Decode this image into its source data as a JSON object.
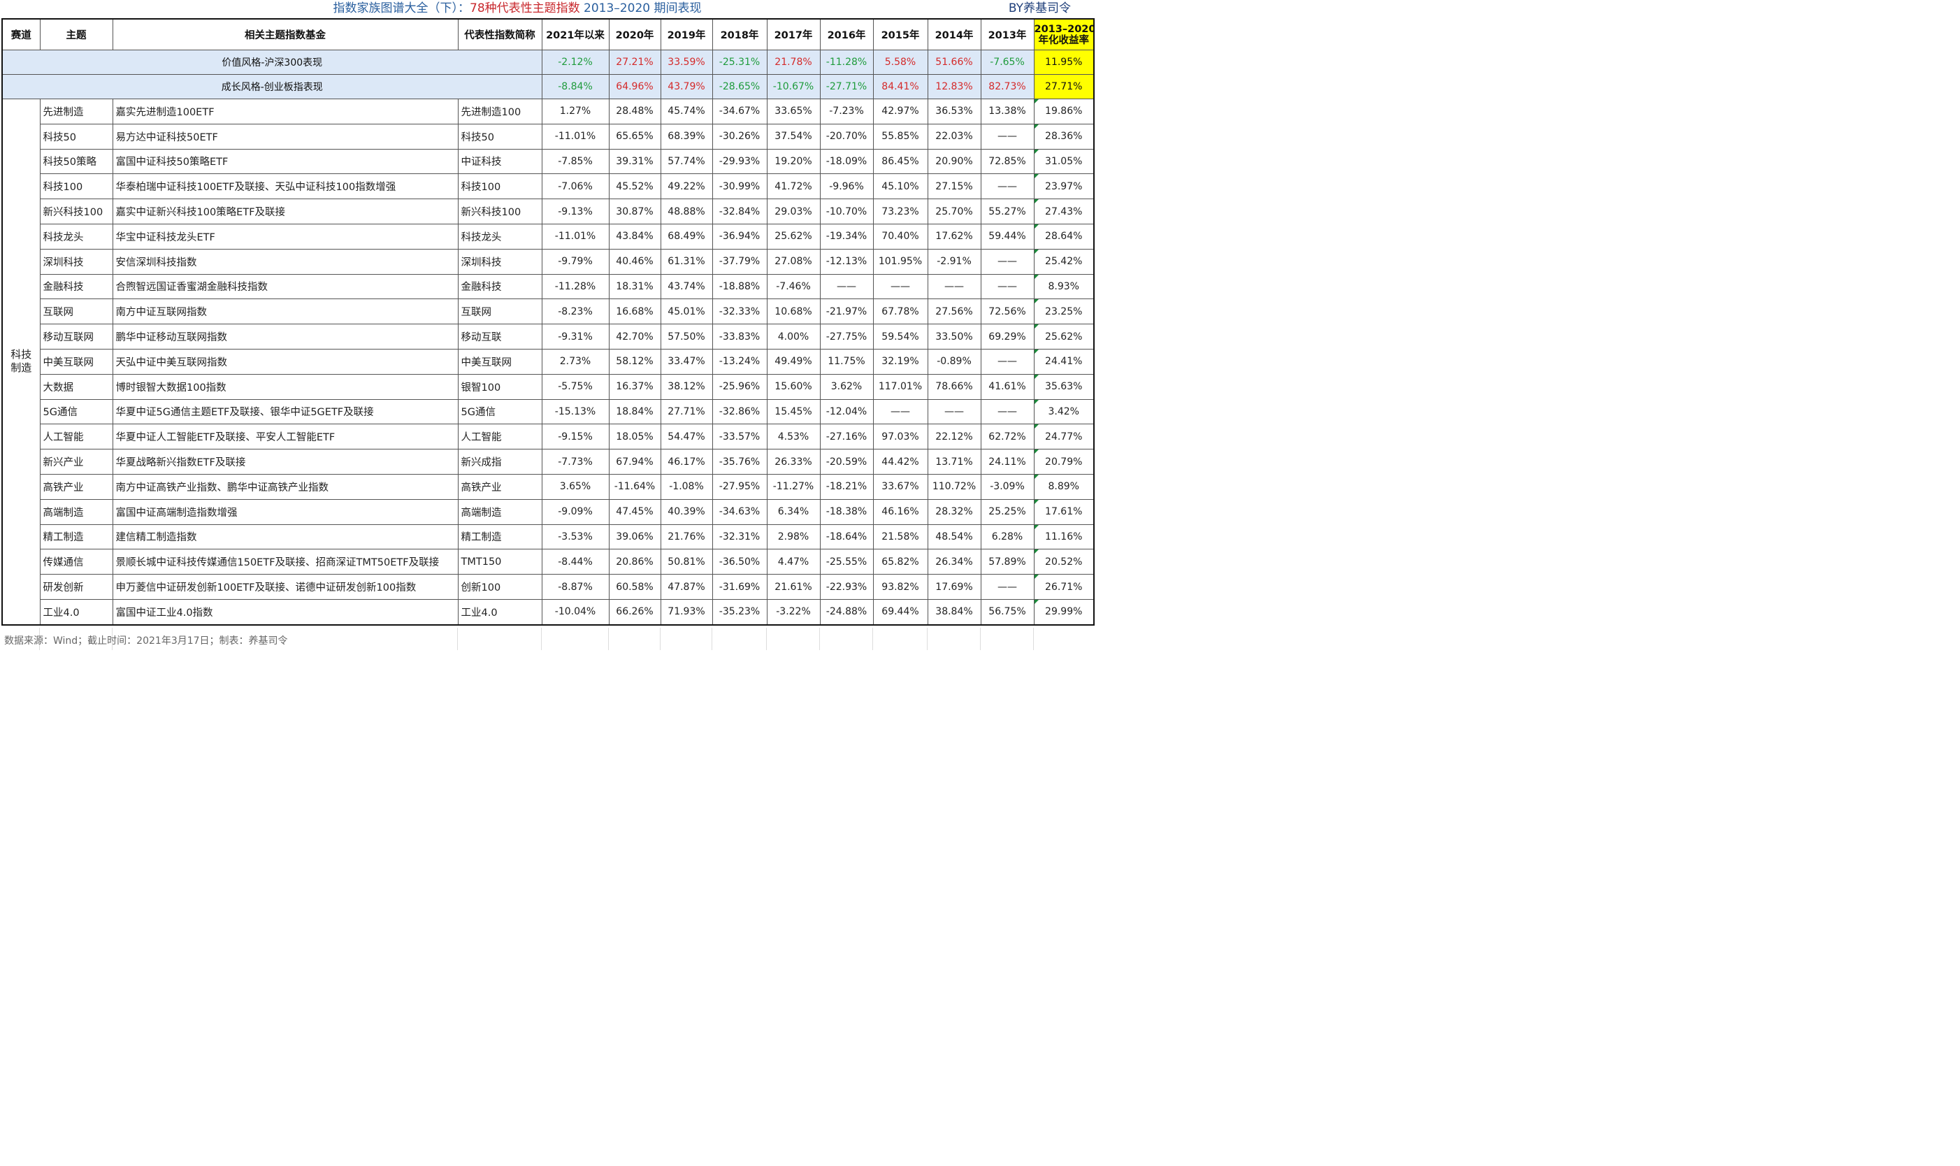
{
  "title": {
    "part1": "指数家族图谱大全（下）：",
    "part2": "78种",
    "part3": "代表性主题指数",
    "part4": " 2013–2020 期间表现",
    "byline": "BY养基司令"
  },
  "headers": [
    "赛道",
    "主题",
    "相关主题指数基金",
    "代表性指数简称",
    "2021年以来",
    "2020年",
    "2019年",
    "2018年",
    "2017年",
    "2016年",
    "2015年",
    "2014年",
    "2013年"
  ],
  "header_last": {
    "line1": "2013–2020",
    "line2": "年化收益率"
  },
  "summary": [
    {
      "label": "价值风格-沪深300表现",
      "values": [
        "-2.12%",
        "27.21%",
        "33.59%",
        "-25.31%",
        "21.78%",
        "-11.28%",
        "5.58%",
        "51.66%",
        "-7.65%",
        "11.95%"
      ]
    },
    {
      "label": "成长风格-创业板指表现",
      "values": [
        "-8.84%",
        "64.96%",
        "43.79%",
        "-28.65%",
        "-10.67%",
        "-27.71%",
        "84.41%",
        "12.83%",
        "82.73%",
        "27.71%"
      ]
    }
  ],
  "track_label": "科技\n制造",
  "rows": [
    {
      "theme": "先进制造",
      "fund": "嘉实先进制造100ETF",
      "index": "先进制造100",
      "values": [
        "1.27%",
        "28.48%",
        "45.74%",
        "-34.67%",
        "33.65%",
        "-7.23%",
        "42.97%",
        "36.53%",
        "13.38%",
        "19.86%"
      ]
    },
    {
      "theme": "科技50",
      "fund": "易方达中证科技50ETF",
      "index": "科技50",
      "values": [
        "-11.01%",
        "65.65%",
        "68.39%",
        "-30.26%",
        "37.54%",
        "-20.70%",
        "55.85%",
        "22.03%",
        "——",
        "28.36%"
      ]
    },
    {
      "theme": "科技50策略",
      "fund": "富国中证科技50策略ETF",
      "index": "中证科技",
      "values": [
        "-7.85%",
        "39.31%",
        "57.74%",
        "-29.93%",
        "19.20%",
        "-18.09%",
        "86.45%",
        "20.90%",
        "72.85%",
        "31.05%"
      ]
    },
    {
      "theme": "科技100",
      "fund": "华泰柏瑞中证科技100ETF及联接、天弘中证科技100指数增强",
      "index": "科技100",
      "values": [
        "-7.06%",
        "45.52%",
        "49.22%",
        "-30.99%",
        "41.72%",
        "-9.96%",
        "45.10%",
        "27.15%",
        "——",
        "23.97%"
      ]
    },
    {
      "theme": "新兴科技100",
      "fund": "嘉实中证新兴科技100策略ETF及联接",
      "index": "新兴科技100",
      "values": [
        "-9.13%",
        "30.87%",
        "48.88%",
        "-32.84%",
        "29.03%",
        "-10.70%",
        "73.23%",
        "25.70%",
        "55.27%",
        "27.43%"
      ]
    },
    {
      "theme": "科技龙头",
      "fund": "华宝中证科技龙头ETF",
      "index": "科技龙头",
      "values": [
        "-11.01%",
        "43.84%",
        "68.49%",
        "-36.94%",
        "25.62%",
        "-19.34%",
        "70.40%",
        "17.62%",
        "59.44%",
        "28.64%"
      ]
    },
    {
      "theme": "深圳科技",
      "fund": "安信深圳科技指数",
      "index": "深圳科技",
      "values": [
        "-9.79%",
        "40.46%",
        "61.31%",
        "-37.79%",
        "27.08%",
        "-12.13%",
        "101.95%",
        "-2.91%",
        "——",
        "25.42%"
      ]
    },
    {
      "theme": "金融科技",
      "fund": "合煦智远国证香蜜湖金融科技指数",
      "index": "金融科技",
      "values": [
        "-11.28%",
        "18.31%",
        "43.74%",
        "-18.88%",
        "-7.46%",
        "——",
        "——",
        "——",
        "——",
        "8.93%"
      ]
    },
    {
      "theme": "互联网",
      "fund": "南方中证互联网指数",
      "index": "互联网",
      "values": [
        "-8.23%",
        "16.68%",
        "45.01%",
        "-32.33%",
        "10.68%",
        "-21.97%",
        "67.78%",
        "27.56%",
        "72.56%",
        "23.25%"
      ]
    },
    {
      "theme": "移动互联网",
      "fund": "鹏华中证移动互联网指数",
      "index": "移动互联",
      "values": [
        "-9.31%",
        "42.70%",
        "57.50%",
        "-33.83%",
        "4.00%",
        "-27.75%",
        "59.54%",
        "33.50%",
        "69.29%",
        "25.62%"
      ]
    },
    {
      "theme": "中美互联网",
      "fund": "天弘中证中美互联网指数",
      "index": "中美互联网",
      "values": [
        "2.73%",
        "58.12%",
        "33.47%",
        "-13.24%",
        "49.49%",
        "11.75%",
        "32.19%",
        "-0.89%",
        "——",
        "24.41%"
      ]
    },
    {
      "theme": "大数据",
      "fund": "博时银智大数据100指数",
      "index": "银智100",
      "values": [
        "-5.75%",
        "16.37%",
        "38.12%",
        "-25.96%",
        "15.60%",
        "3.62%",
        "117.01%",
        "78.66%",
        "41.61%",
        "35.63%"
      ]
    },
    {
      "theme": "5G通信",
      "fund": "华夏中证5G通信主题ETF及联接、银华中证5GETF及联接",
      "index": "5G通信",
      "values": [
        "-15.13%",
        "18.84%",
        "27.71%",
        "-32.86%",
        "15.45%",
        "-12.04%",
        "——",
        "——",
        "——",
        "3.42%"
      ]
    },
    {
      "theme": "人工智能",
      "fund": "华夏中证人工智能ETF及联接、平安人工智能ETF",
      "index": "人工智能",
      "values": [
        "-9.15%",
        "18.05%",
        "54.47%",
        "-33.57%",
        "4.53%",
        "-27.16%",
        "97.03%",
        "22.12%",
        "62.72%",
        "24.77%"
      ]
    },
    {
      "theme": "新兴产业",
      "fund": "华夏战略新兴指数ETF及联接",
      "index": "新兴成指",
      "values": [
        "-7.73%",
        "67.94%",
        "46.17%",
        "-35.76%",
        "26.33%",
        "-20.59%",
        "44.42%",
        "13.71%",
        "24.11%",
        "20.79%"
      ]
    },
    {
      "theme": "高铁产业",
      "fund": "南方中证高铁产业指数、鹏华中证高铁产业指数",
      "index": "高铁产业",
      "values": [
        "3.65%",
        "-11.64%",
        "-1.08%",
        "-27.95%",
        "-11.27%",
        "-18.21%",
        "33.67%",
        "110.72%",
        "-3.09%",
        "8.89%"
      ]
    },
    {
      "theme": "高端制造",
      "fund": "富国中证高端制造指数增强",
      "index": "高端制造",
      "values": [
        "-9.09%",
        "47.45%",
        "40.39%",
        "-34.63%",
        "6.34%",
        "-18.38%",
        "46.16%",
        "28.32%",
        "25.25%",
        "17.61%"
      ]
    },
    {
      "theme": "精工制造",
      "fund": "建信精工制造指数",
      "index": "精工制造",
      "values": [
        "-3.53%",
        "39.06%",
        "21.76%",
        "-32.31%",
        "2.98%",
        "-18.64%",
        "21.58%",
        "48.54%",
        "6.28%",
        "11.16%"
      ]
    },
    {
      "theme": "传媒通信",
      "fund": "景顺长城中证科技传媒通信150ETF及联接、招商深证TMT50ETF及联接",
      "index": "TMT150",
      "values": [
        "-8.44%",
        "20.86%",
        "50.81%",
        "-36.50%",
        "4.47%",
        "-25.55%",
        "65.82%",
        "26.34%",
        "57.89%",
        "20.52%"
      ]
    },
    {
      "theme": "研发创新",
      "fund": "申万菱信中证研发创新100ETF及联接、诺德中证研发创新100指数",
      "index": "创新100",
      "values": [
        "-8.87%",
        "60.58%",
        "47.87%",
        "-31.69%",
        "21.61%",
        "-22.93%",
        "93.82%",
        "17.69%",
        "——",
        "26.71%"
      ]
    },
    {
      "theme": "工业4.0",
      "fund": "富国中证工业4.0指数",
      "index": "工业4.0",
      "values": [
        "-10.04%",
        "66.26%",
        "71.93%",
        "-35.23%",
        "-3.22%",
        "-24.88%",
        "69.44%",
        "38.84%",
        "56.75%",
        "29.99%"
      ]
    }
  ],
  "footer": "数据来源：Wind；截止时间：2021年3月17日；制表：养基司令",
  "colors": {
    "positive": "#d42a2a",
    "negative": "#1f9b3c",
    "highlight": "#ffff00",
    "summary_bg": "#dce8f7",
    "title": "#2a5f9e"
  }
}
